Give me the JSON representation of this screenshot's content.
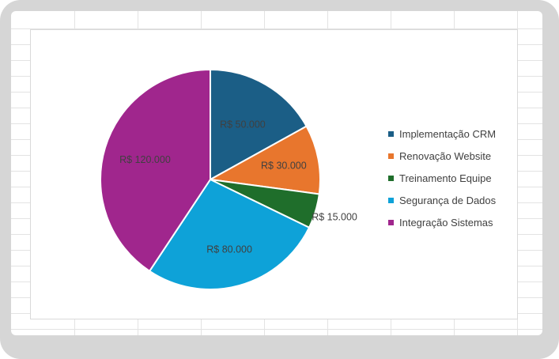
{
  "chart_data": {
    "type": "pie",
    "title": "",
    "categories": [
      "Implementação CRM",
      "Renovação Website",
      "Treinamento Equipe",
      "Segurança de Dados",
      "Integração Sistemas"
    ],
    "values": [
      50000,
      30000,
      15000,
      80000,
      120000
    ],
    "data_labels": [
      "R$ 50.000",
      "R$ 30.000",
      "R$ 15.000",
      "R$ 80.000",
      "R$ 120.000"
    ],
    "colors": [
      "#1b5e86",
      "#e8762d",
      "#1f6e2b",
      "#0ea2d8",
      "#a0268d"
    ],
    "legend_position": "right"
  }
}
